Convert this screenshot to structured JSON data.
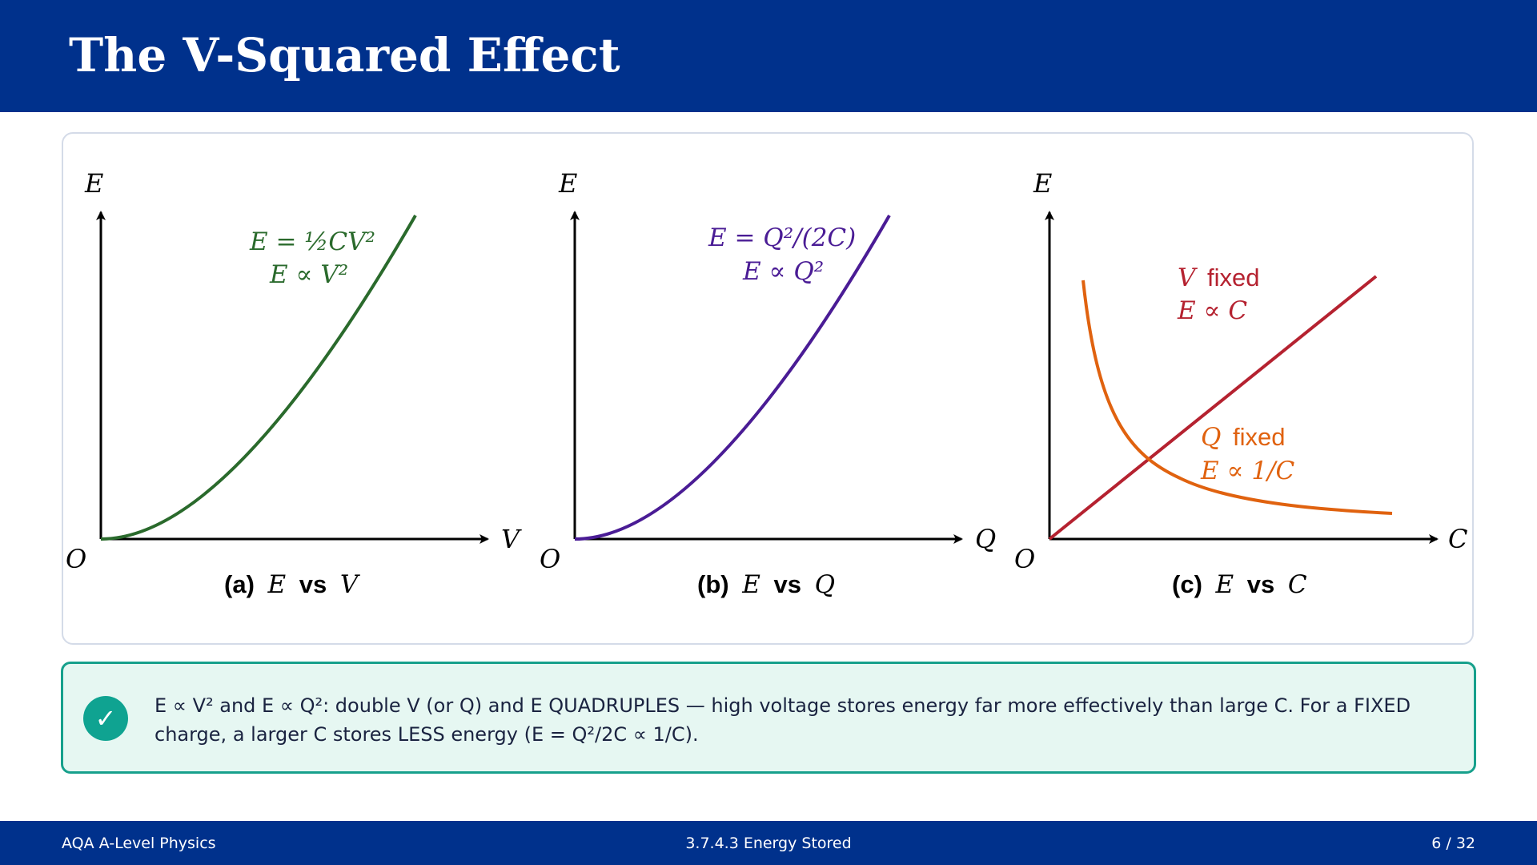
{
  "slide": {
    "title": "The V-Squared Effect"
  },
  "colors": {
    "header": "#00318c",
    "green": "#2a6a2c",
    "purple": "#4a1c95",
    "red": "#b52230",
    "orange": "#e0620f",
    "teal": "#0fa391"
  },
  "panels": [
    {
      "y_label": "E",
      "x_label": "V",
      "origin": "O",
      "caption_tag": "(a)",
      "caption_a": "E",
      "caption_vs": "vs",
      "caption_b": "V",
      "eq1": "E = ½CV²",
      "eq2": "E ∝ V²"
    },
    {
      "y_label": "E",
      "x_label": "Q",
      "origin": "O",
      "caption_tag": "(b)",
      "caption_a": "E",
      "caption_vs": "vs",
      "caption_b": "Q",
      "eq1": "E = Q²/(2C)",
      "eq2": "E ∝ Q²"
    },
    {
      "y_label": "E",
      "x_label": "C",
      "origin": "O",
      "caption_tag": "(c)",
      "caption_a": "E",
      "caption_vs": "vs",
      "caption_b": "C",
      "v_fixed_var": "V",
      "v_fixed_word": "fixed",
      "v_rel": "E ∝ C",
      "q_fixed_var": "Q",
      "q_fixed_word": "fixed",
      "q_rel": "E ∝ 1/C"
    }
  ],
  "note": {
    "icon": "check-icon",
    "text": "E ∝ V² and E ∝ Q²: double V (or Q) and E QUADRUPLES — high voltage stores energy far more effectively than large C. For a FIXED charge, a larger C stores LESS energy (E = Q²/2C ∝ 1/C)."
  },
  "footer": {
    "left": "AQA A-Level Physics",
    "center": "3.7.4.3  Energy Stored",
    "right": "6 / 32"
  }
}
